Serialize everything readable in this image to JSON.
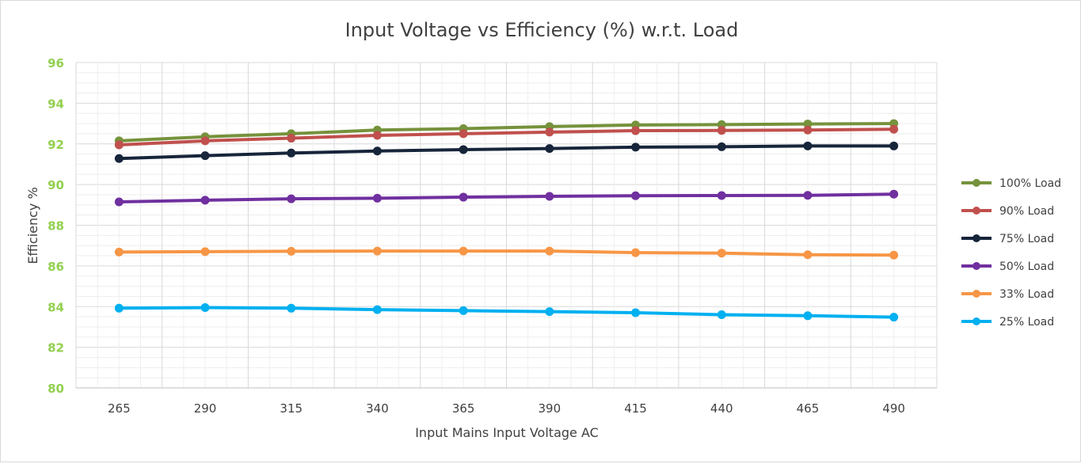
{
  "chart_data": {
    "type": "line",
    "title": "Input Voltage vs Efficiency (%) w.r.t. Load",
    "xlabel": "Input Mains Input Voltage AC",
    "ylabel": "Efficiency %",
    "x": [
      "265",
      "290",
      "315",
      "340",
      "365",
      "390",
      "415",
      "440",
      "465",
      "490"
    ],
    "yticks": [
      "80",
      "82",
      "84",
      "86",
      "88",
      "90",
      "92",
      "94",
      "96"
    ],
    "ylim": [
      80,
      96
    ],
    "grid": true,
    "legend_position": "right",
    "ytick_color": "#92d050",
    "series": [
      {
        "name": "100% Load",
        "color": "#76923c",
        "values": [
          92.15,
          92.35,
          92.5,
          92.68,
          92.75,
          92.85,
          92.93,
          92.95,
          92.98,
          93.0
        ]
      },
      {
        "name": "90% Load",
        "color": "#c0504d",
        "values": [
          91.95,
          92.15,
          92.28,
          92.42,
          92.5,
          92.58,
          92.65,
          92.66,
          92.68,
          92.72
        ]
      },
      {
        "name": "75% Load",
        "color": "#17253b",
        "values": [
          91.28,
          91.42,
          91.55,
          91.65,
          91.72,
          91.77,
          91.84,
          91.86,
          91.9,
          91.9
        ]
      },
      {
        "name": "50% Load",
        "color": "#7030a0",
        "values": [
          89.15,
          89.23,
          89.3,
          89.33,
          89.38,
          89.42,
          89.45,
          89.46,
          89.47,
          89.53
        ]
      },
      {
        "name": "33% Load",
        "color": "#f79646",
        "values": [
          86.68,
          86.7,
          86.72,
          86.73,
          86.73,
          86.73,
          86.65,
          86.63,
          86.55,
          86.53
        ]
      },
      {
        "name": "25% Load",
        "color": "#00b0f0",
        "values": [
          83.92,
          83.95,
          83.92,
          83.85,
          83.8,
          83.75,
          83.7,
          83.6,
          83.55,
          83.48
        ]
      }
    ]
  }
}
